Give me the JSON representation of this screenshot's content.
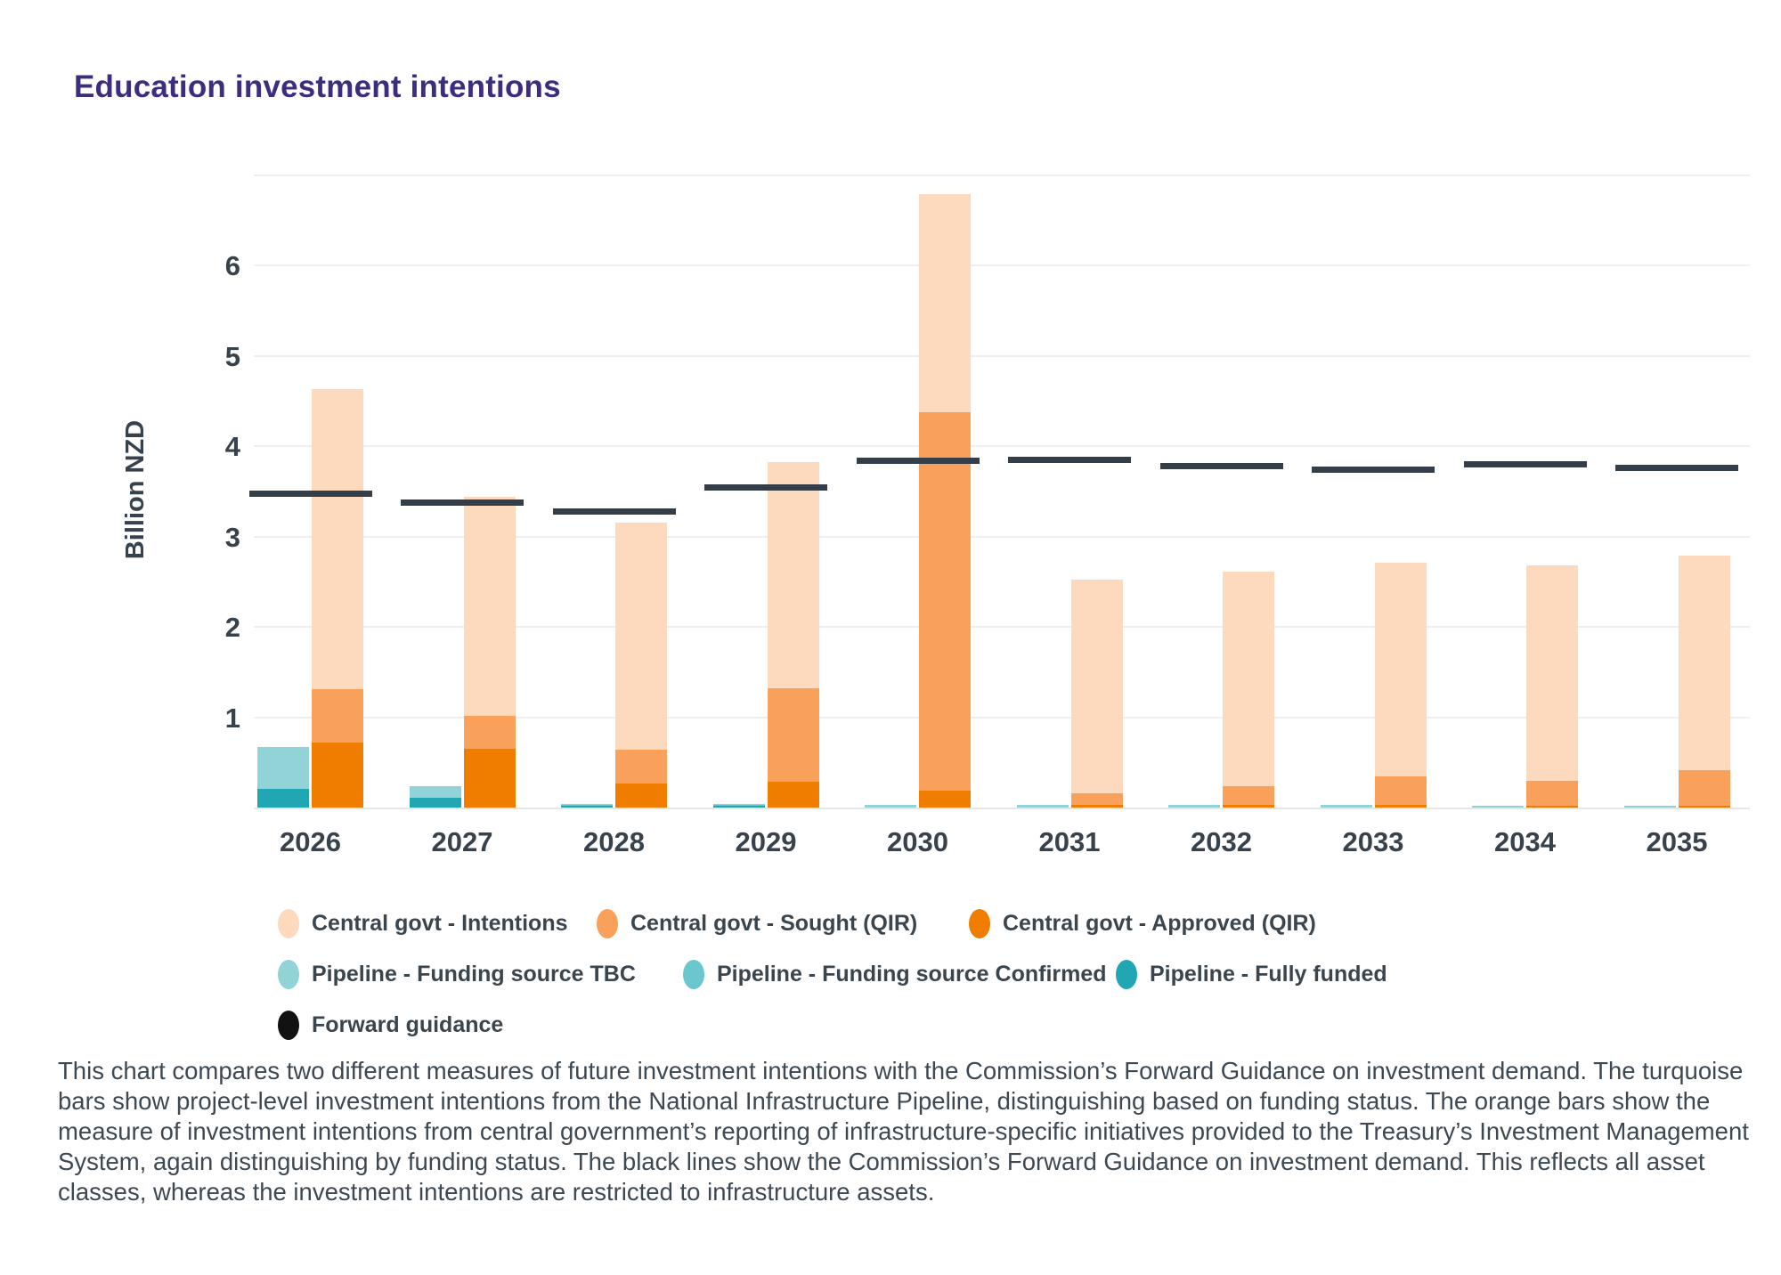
{
  "title": "Education investment intentions",
  "caption": "This chart compares two different measures of future investment intentions with the Commission’s Forward Guidance on investment demand. The turquoise bars show project-level investment intentions from the National Infrastructure Pipeline, distinguishing based on funding status. The orange bars show the measure of investment intentions from central government’s reporting of infrastructure-specific initiatives provided to the Treasury’s Investment Management System, again distinguishing by funding status. The black lines show the Commission’s Forward Guidance on investment demand. This reflects all asset classes, whereas the investment intentions are restricted to infrastructure assets.",
  "colors": {
    "title": "#3D2C80",
    "axis_text": "#37424C",
    "gridline": "#EFEFEF",
    "forward_guidance_line": "#333E48",
    "intentions": "#FDD9BE",
    "sought": "#F9A05B",
    "approved": "#F07C00",
    "pipeline_tbc": "#92D3D8",
    "pipeline_confirmed": "#6BC7CE",
    "pipeline_fully_funded": "#20A7B3"
  },
  "chart_data": {
    "type": "bar",
    "title": "Education investment intentions",
    "xlabel": "",
    "ylabel": "Billion NZD",
    "ylim": [
      0,
      7
    ],
    "yticks": [
      1,
      2,
      3,
      4,
      5,
      6
    ],
    "grid": true,
    "categories": [
      "2026",
      "2027",
      "2028",
      "2029",
      "2030",
      "2031",
      "2032",
      "2033",
      "2034",
      "2035"
    ],
    "series": [
      {
        "name": "Pipeline - Fully funded",
        "stack": "pipeline",
        "color": "#20A7B3",
        "values": [
          0.21,
          0.11,
          0.02,
          0.02,
          0,
          0,
          0,
          0,
          0,
          0
        ]
      },
      {
        "name": "Pipeline - Funding source Confirmed",
        "stack": "pipeline",
        "color": "#6BC7CE",
        "values": [
          0,
          0,
          0.01,
          0.01,
          0,
          0,
          0,
          0,
          0,
          0
        ]
      },
      {
        "name": "Pipeline - Funding source TBC",
        "stack": "pipeline",
        "color": "#92D3D8",
        "values": [
          0.46,
          0.13,
          0.01,
          0.01,
          0.03,
          0.03,
          0.03,
          0.03,
          0.02,
          0.02
        ]
      },
      {
        "name": "Central govt - Approved (QIR)",
        "stack": "central",
        "color": "#F07C00",
        "values": [
          0.72,
          0.65,
          0.27,
          0.29,
          0.19,
          0.03,
          0.03,
          0.03,
          0.02,
          0.02
        ]
      },
      {
        "name": "Central govt - Sought (QIR)",
        "stack": "central",
        "color": "#F9A05B",
        "values": [
          0.59,
          0.36,
          0.37,
          1.03,
          4.18,
          0.13,
          0.21,
          0.31,
          0.28,
          0.39
        ]
      },
      {
        "name": "Central govt - Intentions",
        "stack": "central",
        "color": "#FDD9BE",
        "values": [
          3.32,
          2.43,
          2.51,
          2.5,
          2.42,
          2.36,
          2.37,
          2.37,
          2.38,
          2.38
        ]
      }
    ],
    "forward_guidance": {
      "name": "Forward guidance",
      "values": [
        3.47,
        3.37,
        3.28,
        3.54,
        3.84,
        3.85,
        3.78,
        3.74,
        3.8,
        3.76
      ]
    },
    "legend_position": "bottom"
  },
  "legend": {
    "rows": [
      [
        {
          "label": "Central govt - Intentions",
          "color": "#FDD9BE"
        },
        {
          "label": "Central govt - Sought (QIR)",
          "color": "#F9A05B"
        },
        {
          "label": "Central govt - Approved (QIR)",
          "color": "#F07C00"
        }
      ],
      [
        {
          "label": "Pipeline - Funding source TBC",
          "color": "#92D3D8"
        },
        {
          "label": "Pipeline - Funding source Confirmed",
          "color": "#6BC7CE"
        },
        {
          "label": "Pipeline - Fully funded",
          "color": "#20A7B3"
        }
      ],
      [
        {
          "label": "Forward guidance",
          "color": "#121212"
        }
      ]
    ]
  }
}
